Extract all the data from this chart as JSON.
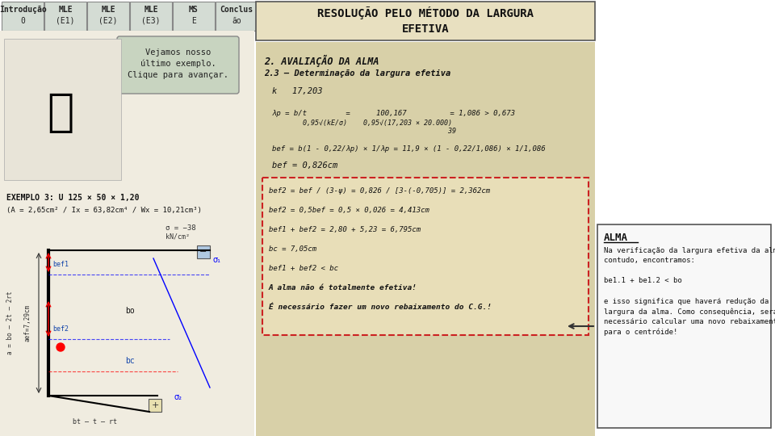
{
  "nav_tabs": [
    "Introdução\n0",
    "MLE\n(E1)",
    "MLE\n(E2)",
    "MLE\n(E3)",
    "MS\nE",
    "Conclus\não"
  ],
  "title_bg": "#e8e0c0",
  "main_bg": "#d8d0a8",
  "speech_bubble_bg": "#c8d4c0",
  "right_title": "ALMA",
  "right_text": "Na verificação da largura efetiva da alma,\ncontudo, encontramos:\n\nbe1.1 + be1.2 < bo\n\ne isso significa que haverá redução da\nlargura da alma. Como consequência, será\nnecessário calcular uma novo rebaixamento\npara o centróide!",
  "arrow_color": "#333333"
}
